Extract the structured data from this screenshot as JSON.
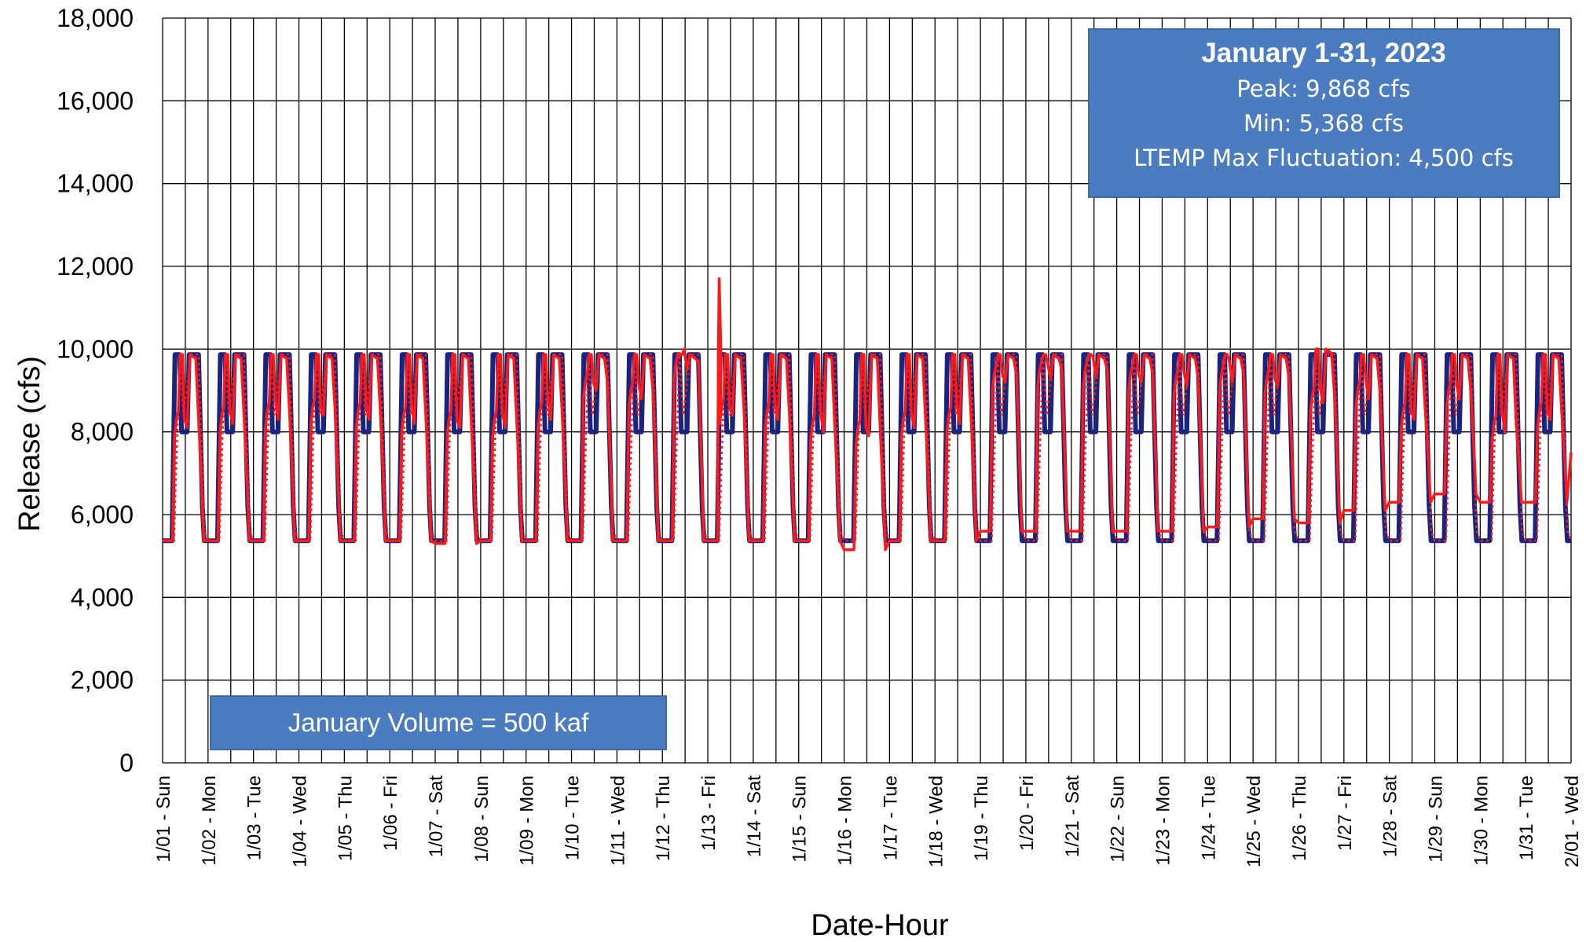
{
  "chart_data": {
    "type": "line",
    "xlabel": "Date-Hour",
    "ylabel": "Release  (cfs)",
    "ylim": [
      0,
      18000
    ],
    "yticks": [
      0,
      2000,
      4000,
      6000,
      8000,
      10000,
      12000,
      14000,
      16000,
      18000
    ],
    "ytick_labels": [
      "0",
      "2,000",
      "4,000",
      "6,000",
      "8,000",
      "10,000",
      "12,000",
      "14,000",
      "16,000",
      "18,000"
    ],
    "x_tick_labels": [
      "1/01 - Sun",
      "1/02 - Mon",
      "1/03 - Tue",
      "1/04 - Wed",
      "1/05 - Thu",
      "1/06 - Fri",
      "1/07 - Sat",
      "1/08 - Sun",
      "1/09 - Mon",
      "1/10 - Tue",
      "1/11 - Wed",
      "1/12 - Thu",
      "1/13 - Fri",
      "1/14 - Sat",
      "1/15 - Sun",
      "1/16 - Mon",
      "1/17 - Tue",
      "1/18 - Wed",
      "1/19 - Thu",
      "1/20 - Fri",
      "1/21 - Sat",
      "1/22 - Sun",
      "1/23 - Mon",
      "1/24 - Tue",
      "1/25 - Wed",
      "1/26 - Thu",
      "1/27 - Fri",
      "1/28 - Sat",
      "1/29 - Sun",
      "1/30 - Mon",
      "1/31 - Tue",
      "2/01 - Wed"
    ],
    "grid": true,
    "series": [
      {
        "color": "#1a237e",
        "style": "solid",
        "pattern_cfs": {
          "min": 5368,
          "mid": 8000,
          "peak": 9868
        },
        "daily_values": [
          {
            "hour": 0,
            "cfs": 5368
          },
          {
            "hour": 5,
            "cfs": 5368
          },
          {
            "hour": 6.5,
            "cfs": 9868
          },
          {
            "hour": 9,
            "cfs": 9868
          },
          {
            "hour": 10,
            "cfs": 8000
          },
          {
            "hour": 13,
            "cfs": 8000
          },
          {
            "hour": 14,
            "cfs": 9868
          },
          {
            "hour": 19,
            "cfs": 9868
          },
          {
            "hour": 21,
            "cfs": 6200
          },
          {
            "hour": 22,
            "cfs": 5368
          },
          {
            "hour": 24,
            "cfs": 5368
          }
        ]
      },
      {
        "color": "#ff1a1a",
        "style": "solid",
        "daily_mins": [
          5368,
          5368,
          5368,
          5368,
          5368,
          5368,
          5300,
          5368,
          5368,
          5368,
          5368,
          5368,
          5368,
          5368,
          5368,
          5150,
          5368,
          5368,
          5600,
          5600,
          5600,
          5600,
          5600,
          5700,
          5900,
          5800,
          6100,
          6300,
          6500,
          6300,
          6300
        ],
        "daily_mids": [
          8300,
          8400,
          8500,
          8600,
          8500,
          8400,
          8300,
          8300,
          8500,
          9200,
          9000,
          9700,
          8600,
          8500,
          8200,
          8100,
          8300,
          8400,
          9400,
          9500,
          9500,
          9400,
          9300,
          9400,
          9300,
          8900,
          9000,
          8500,
          9000,
          8200,
          8500
        ],
        "daily_peaks": [
          9868,
          9868,
          9868,
          9868,
          9868,
          9868,
          9868,
          9868,
          9868,
          9868,
          9868,
          9868,
          9868,
          9868,
          9868,
          9868,
          9868,
          9868,
          9868,
          9868,
          9868,
          9868,
          9868,
          9868,
          9868,
          10000,
          9868,
          9868,
          9868,
          9868,
          9868
        ],
        "spike": {
          "day": 12.25,
          "cfs": 11700
        }
      },
      {
        "color": "#ff1a1a",
        "style": "dotted",
        "daily_values": [
          {
            "hour": 0,
            "cfs": 5368
          },
          {
            "hour": 6,
            "cfs": 5368
          },
          {
            "hour": 9,
            "cfs": 9868
          },
          {
            "hour": 11,
            "cfs": 8400
          },
          {
            "hour": 15,
            "cfs": 9868
          },
          {
            "hour": 19,
            "cfs": 9868
          },
          {
            "hour": 22,
            "cfs": 5600
          },
          {
            "hour": 24,
            "cfs": 5368
          }
        ]
      }
    ],
    "annotations": [
      {
        "title": "January 1-31, 2023",
        "lines": [
          "Peak: 9,868 cfs",
          "Min: 5,368 cfs",
          "LTEMP Max Fluctuation: 4,500 cfs"
        ],
        "placement": "top-right",
        "fill": "#4a7cbf"
      },
      {
        "text": "January Volume = 500 kaf",
        "placement": "bottom-left",
        "fill": "#4a7cbf"
      }
    ]
  }
}
